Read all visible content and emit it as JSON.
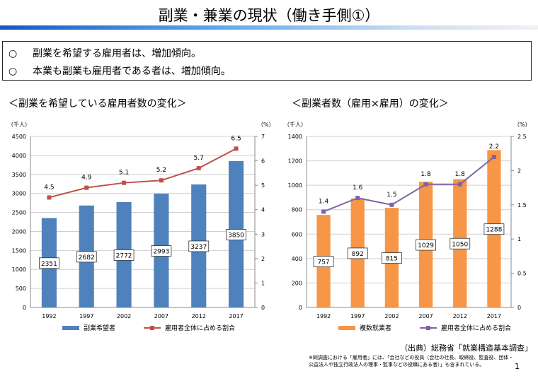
{
  "title": "副業・兼業の現状（働き手側①）",
  "summary": [
    {
      "marker": "○",
      "text": "副業を希望する雇用者は、増加傾向。"
    },
    {
      "marker": "○",
      "text": "本業も副業も雇用者である者は、増加傾向。"
    }
  ],
  "source": "（出典）総務省「就業構造基本調査」",
  "footnote": "※同調査における「雇用者」には、「会社などの役員（会社の社長、取締役、監査役、団体・公益法人や独立行政法人の理事・監事などの役職にある者）」も含まれている。",
  "page_number": "1",
  "chart_data": [
    {
      "type": "bar",
      "title": "＜副業を希望している雇用者数の変化＞",
      "categories": [
        "1992",
        "1997",
        "2002",
        "2007",
        "2012",
        "2017"
      ],
      "ylabel": "（千人）",
      "y2label": "（%）",
      "ylim": [
        0,
        4500
      ],
      "ystep": 500,
      "y2lim": [
        0,
        7
      ],
      "y2step": 1,
      "grid": true,
      "legend": "bottom",
      "series": [
        {
          "name": "副業希望者",
          "kind": "bar",
          "axis": "left",
          "color": "#4f81bd",
          "values": [
            2351,
            2682,
            2772,
            2993,
            3237,
            3850
          ]
        },
        {
          "name": "雇用者全体に占める割合",
          "kind": "line",
          "axis": "right",
          "color": "#c0504d",
          "values": [
            4.5,
            4.9,
            5.1,
            5.2,
            5.7,
            6.5
          ]
        }
      ]
    },
    {
      "type": "bar",
      "title": "＜副業者数（雇用×雇用）の変化＞",
      "categories": [
        "1992",
        "1997",
        "2002",
        "2007",
        "2012",
        "2017"
      ],
      "ylabel": "（千人）",
      "y2label": "（%）",
      "ylim": [
        0,
        1400
      ],
      "ystep": 200,
      "y2lim": [
        0,
        2.5
      ],
      "y2step": 0.5,
      "grid": true,
      "legend": "bottom",
      "series": [
        {
          "name": "複数就業者",
          "kind": "bar",
          "axis": "left",
          "color": "#f79646",
          "values": [
            757,
            892,
            815,
            1029,
            1050,
            1288
          ]
        },
        {
          "name": "雇用者全体に占める割合",
          "kind": "line",
          "axis": "right",
          "color": "#8064a2",
          "values": [
            1.4,
            1.6,
            1.5,
            1.8,
            1.8,
            2.2
          ]
        }
      ]
    }
  ]
}
